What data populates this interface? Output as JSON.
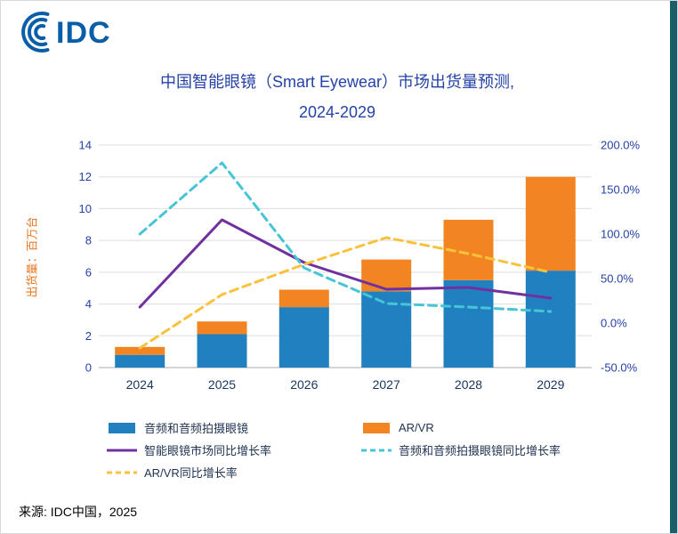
{
  "page": {
    "logo_text": "IDC",
    "source_note": "来源: IDC中国，2025"
  },
  "title": {
    "line1": "中国智能眼镜（Smart Eyewear）市场出货量预测,",
    "line2": "2024-2029"
  },
  "chart_data": {
    "type": "bar",
    "subtype": "stacked-bars-with-growth-lines",
    "title": "中国智能眼镜（Smart Eyewear）市场出货量预测, 2024-2029",
    "categories": [
      "2024",
      "2025",
      "2026",
      "2027",
      "2028",
      "2029"
    ],
    "bar_series": [
      {
        "name": "音频和音频拍摄眼镜",
        "color": "#2181c0",
        "axis": "left",
        "values": [
          0.8,
          2.1,
          3.8,
          4.8,
          5.5,
          6.1
        ]
      },
      {
        "name": "AR/VR",
        "color": "#f28522",
        "axis": "left",
        "values": [
          0.5,
          0.8,
          1.1,
          2.0,
          3.8,
          5.9
        ]
      }
    ],
    "line_series": [
      {
        "name": "智能眼镜市场同比增长率",
        "color": "#7030a0",
        "dashed": false,
        "axis": "right",
        "values": [
          18,
          116,
          68,
          38,
          40,
          28
        ]
      },
      {
        "name": "音频和音频拍摄眼镜同比增长率",
        "color": "#45c5d5",
        "dashed": true,
        "axis": "right",
        "values": [
          100,
          180,
          62,
          22,
          18,
          13
        ]
      },
      {
        "name": "AR/VR同比增长率",
        "color": "#f9c23c",
        "dashed": true,
        "axis": "right",
        "values": [
          -28,
          32,
          66,
          96,
          78,
          57
        ]
      }
    ],
    "y_left": {
      "label": "出货量：百万台",
      "min": 0,
      "max": 14,
      "ticks": [
        0,
        2,
        4,
        6,
        8,
        10,
        12,
        14
      ]
    },
    "y_right": {
      "label": "",
      "min": -50,
      "max": 200,
      "ticks": [
        -50,
        0,
        50,
        100,
        150,
        200
      ],
      "tick_labels": [
        "-50.0%",
        "0.0%",
        "50.0%",
        "100.0%",
        "150.0%",
        "200.0%"
      ]
    },
    "grid": true,
    "legend_position": "bottom"
  }
}
